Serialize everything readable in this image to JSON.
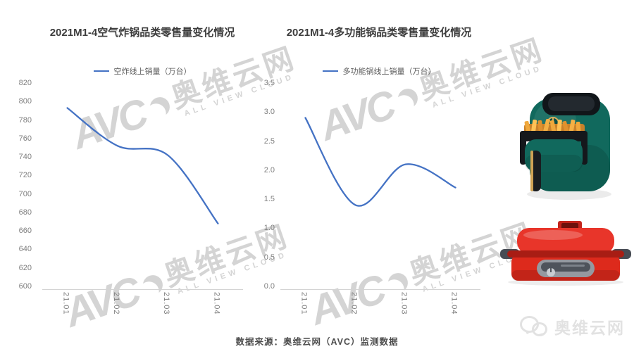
{
  "watermark": {
    "logo": "AVC",
    "cn": "奥维云网",
    "en": "ALL VIEW CLOUD"
  },
  "footer": {
    "source": "数据来源：奥维云网（AVC）监测数据",
    "brand": "奥维云网"
  },
  "products": {
    "air_fryer": {
      "body_color": "#11695D"
    },
    "multi_cooker": {
      "body_color": "#DD2A1C"
    }
  },
  "chart_data": [
    {
      "type": "line",
      "title": "2021M1-4空气炸锅品类零售量变化情况",
      "legend": "空炸线上销量（万台）",
      "categories": [
        "21.01",
        "21.02",
        "21.03",
        "21.04"
      ],
      "values": [
        793,
        752,
        742,
        668
      ],
      "ylim": [
        600,
        820
      ],
      "y_ticks": [
        "820",
        "800",
        "780",
        "760",
        "740",
        "720",
        "700",
        "680",
        "660",
        "640",
        "620",
        "600"
      ],
      "xlabel": "",
      "ylabel": "",
      "grid": false,
      "legend_position": "top",
      "line_color": "#4472C4"
    },
    {
      "type": "line",
      "title": "2021M1-4多功能锅品类零售量变化情况",
      "legend": "多功能锅线上销量（万台）",
      "categories": [
        "21.01",
        "21.02",
        "21.03",
        "21.04"
      ],
      "values": [
        2.9,
        1.4,
        2.1,
        1.7
      ],
      "ylim": [
        0,
        3.5
      ],
      "y_ticks": [
        "3.5",
        "3.0",
        "2.5",
        "2.0",
        "1.5",
        "1.0",
        "0.5",
        "0.0"
      ],
      "xlabel": "",
      "ylabel": "",
      "grid": false,
      "legend_position": "top",
      "line_color": "#4472C4"
    }
  ]
}
